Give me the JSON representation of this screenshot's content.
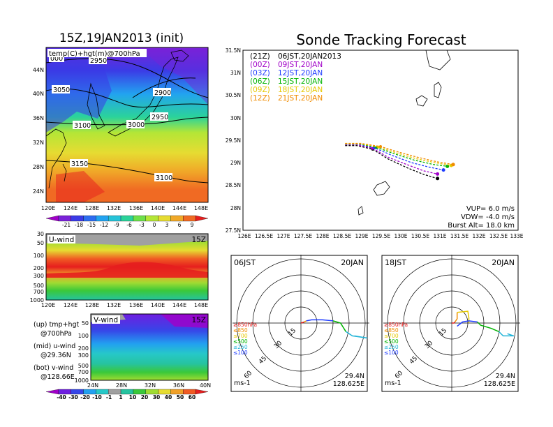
{
  "left_panel": {
    "title": "15Z,19JAN2013 (init)",
    "map_label": "temp(C)+hgt(m)@700hPa",
    "map_lat_ticks": [
      "44N",
      "40N",
      "36N",
      "32N",
      "28N",
      "24N"
    ],
    "map_lon_ticks": [
      "120E",
      "124E",
      "128E",
      "132E",
      "136E",
      "140E",
      "144E",
      "148E"
    ],
    "contour_labels": [
      "000",
      "2950",
      "3050",
      "2900",
      "3100",
      "2950",
      "3000",
      "3150",
      "3100"
    ],
    "temp_colorbar_labels": [
      "-21",
      "-18",
      "-15",
      "-12",
      "-9",
      "-6",
      "-3",
      "0",
      "3",
      "6",
      "9"
    ],
    "temp_colorbar_colors": [
      "#a000c8",
      "#7a22d8",
      "#3b3be6",
      "#2d6cf0",
      "#22a3f0",
      "#26c3d8",
      "#2bd39a",
      "#6ee04a",
      "#b4e636",
      "#e6dc32",
      "#f0a828",
      "#f06a23",
      "#e61e1e"
    ],
    "uwind": {
      "label": "U-wind",
      "time": "15Z",
      "levels": [
        "30",
        "50",
        "100",
        "200",
        "300",
        "500",
        "700",
        "1000"
      ],
      "lon_ticks": [
        "120E",
        "124E",
        "128E",
        "132E",
        "136E",
        "140E",
        "144E",
        "148E"
      ]
    },
    "vwind": {
      "label": "V-wind",
      "time": "15Z",
      "levels": [
        "50",
        "100",
        "200",
        "300",
        "500",
        "700",
        "1000"
      ],
      "lat_ticks": [
        "24N",
        "28N",
        "32N",
        "36N",
        "40N"
      ]
    },
    "legend_notes": [
      "(up) tmp+hgt",
      "@700hPa",
      "(mid) u-wind",
      "@29.36N",
      "(bot) v-wind",
      "@128.66E"
    ],
    "wind_colorbar_labels": [
      "-40",
      "-30",
      "-20",
      "-10",
      "-1",
      "1",
      "10",
      "20",
      "30",
      "40",
      "50",
      "60"
    ],
    "wind_colorbar_colors": [
      "#a000c8",
      "#6e1ee0",
      "#3746e8",
      "#22a0f0",
      "#26c8c8",
      "#a0a0a0",
      "#26c3a0",
      "#3ac83a",
      "#a0dc32",
      "#e6dc32",
      "#f0a028",
      "#f05a23",
      "#e61e1e"
    ]
  },
  "right_panel": {
    "title": "Sonde Tracking Forecast",
    "legend": [
      {
        "code": "(21Z)",
        "time": "06JST,20JAN2013",
        "color": "#000000"
      },
      {
        "code": "(00Z)",
        "time": "09JST,20JAN",
        "color": "#a000c8"
      },
      {
        "code": "(03Z)",
        "time": "12JST,20JAN",
        "color": "#1e3cff"
      },
      {
        "code": "(06Z)",
        "time": "15JST,20JAN",
        "color": "#00b400"
      },
      {
        "code": "(09Z)",
        "time": "18JST,20JAN",
        "color": "#e6c800"
      },
      {
        "code": "(12Z)",
        "time": "21JST,20JAN",
        "color": "#f08c00"
      }
    ],
    "params": [
      "VUP= 6.0 m/s",
      "VDW= -4.0 m/s",
      "Burst Alt= 18.0 km"
    ],
    "lat_ticks": [
      "31.5N",
      "31N",
      "30.5N",
      "30N",
      "29.5N",
      "29N",
      "28.5N",
      "28N",
      "27.5N"
    ],
    "lon_ticks": [
      "126E",
      "126.5E",
      "127E",
      "127.5E",
      "128E",
      "128.5E",
      "129E",
      "129.5E",
      "130E",
      "130.5E",
      "131E",
      "131.5E",
      "132E",
      "132.5E",
      "133E"
    ]
  },
  "hodographs": [
    {
      "time": "06JST",
      "date": "20JAN",
      "ring_labels": [
        "15",
        "30",
        "45",
        "60"
      ],
      "levels": [
        "≥850hPa",
        "≤850",
        "≤700",
        "≤500",
        "≤250",
        "≤100"
      ],
      "level_colors": [
        "#e61e1e",
        "#f08c00",
        "#e6c800",
        "#00b400",
        "#22b4d8",
        "#1e3cff"
      ],
      "unit": "ms-1",
      "lat": "29.4N",
      "lon": "128.625E"
    },
    {
      "time": "18JST",
      "date": "20JAN",
      "ring_labels": [
        "15",
        "30",
        "45",
        "60"
      ],
      "levels": [
        "≥850hPa",
        "≤850",
        "≤700",
        "≤500",
        "≤250",
        "≤100"
      ],
      "level_colors": [
        "#e61e1e",
        "#f08c00",
        "#e6c800",
        "#00b400",
        "#22b4d8",
        "#1e3cff"
      ],
      "unit": "ms-1",
      "lat": "29.4N",
      "lon": "128.625E"
    }
  ],
  "chart_data": [
    {
      "type": "line",
      "title": "Sonde Tracking Forecast",
      "xlabel": "",
      "ylabel": "",
      "xlim": [
        126,
        133
      ],
      "ylim": [
        27.5,
        31.5
      ],
      "series": [
        {
          "name": "(21Z) 06JST,20JAN2013",
          "x": [
            128.6,
            128.9,
            129.3,
            129.7,
            130.2,
            130.6,
            130.95
          ],
          "y": [
            29.38,
            29.38,
            29.3,
            29.08,
            28.88,
            28.74,
            28.65
          ]
        },
        {
          "name": "(00Z) 09JST,20JAN",
          "x": [
            128.6,
            128.9,
            129.3,
            129.7,
            130.2,
            130.6,
            130.95
          ],
          "y": [
            29.4,
            29.4,
            29.32,
            29.12,
            28.95,
            28.82,
            28.75
          ]
        },
        {
          "name": "(03Z) 12JST,20JAN",
          "x": [
            128.6,
            128.95,
            129.35,
            129.8,
            130.3,
            130.75,
            131.1
          ],
          "y": [
            29.41,
            29.41,
            29.33,
            29.16,
            29.0,
            28.9,
            28.84
          ]
        },
        {
          "name": "(06Z) 15JST,20JAN",
          "x": [
            128.6,
            128.95,
            129.4,
            129.85,
            130.35,
            130.85,
            131.2
          ],
          "y": [
            29.42,
            29.42,
            29.34,
            29.2,
            29.06,
            28.96,
            28.92
          ]
        },
        {
          "name": "(09Z) 18JST,20JAN",
          "x": [
            128.6,
            129.0,
            129.45,
            129.9,
            130.4,
            130.9,
            131.3
          ],
          "y": [
            29.42,
            29.42,
            29.35,
            29.22,
            29.09,
            29.0,
            28.94
          ]
        },
        {
          "name": "(12Z) 21JST,20JAN",
          "x": [
            128.6,
            129.0,
            129.5,
            129.95,
            130.45,
            130.95,
            131.35
          ],
          "y": [
            29.43,
            29.43,
            29.36,
            29.24,
            29.12,
            29.02,
            28.96
          ]
        }
      ]
    },
    {
      "type": "line",
      "title": "06JST 20JAN",
      "xlabel": "",
      "ylabel": "",
      "xlim": [
        -60,
        60
      ],
      "ylim": [
        -60,
        60
      ],
      "series": [
        {
          "name": "≥850hPa",
          "x": [
            0,
            3
          ],
          "y": [
            0,
            1
          ]
        },
        {
          "name": "≤850",
          "x": [
            3,
            5
          ],
          "y": [
            1,
            2
          ]
        },
        {
          "name": "≤100",
          "x": [
            5,
            10,
            20,
            30
          ],
          "y": [
            2,
            3,
            3,
            2
          ]
        },
        {
          "name": "≤500",
          "x": [
            30,
            37,
            42
          ],
          "y": [
            2,
            0,
            -8
          ]
        },
        {
          "name": "≤250",
          "x": [
            42,
            48,
            62,
            50
          ],
          "y": [
            -8,
            -12,
            -14,
            -12
          ]
        }
      ]
    },
    {
      "type": "line",
      "title": "18JST 20JAN",
      "xlabel": "",
      "ylabel": "",
      "xlim": [
        -60,
        60
      ],
      "ylim": [
        -60,
        60
      ],
      "series": [
        {
          "name": "≥850hPa",
          "x": [
            0,
            2,
            3
          ],
          "y": [
            0,
            0,
            1
          ]
        },
        {
          "name": "≤850",
          "x": [
            3,
            5,
            5
          ],
          "y": [
            1,
            4,
            10
          ]
        },
        {
          "name": "≤700",
          "x": [
            5,
            15,
            16,
            16
          ],
          "y": [
            10,
            11,
            5,
            0
          ]
        },
        {
          "name": "≤100",
          "x": [
            5,
            10,
            16,
            24
          ],
          "y": [
            -3,
            1,
            2,
            1
          ]
        },
        {
          "name": "≤500",
          "x": [
            24,
            27,
            37,
            44
          ],
          "y": [
            1,
            -2,
            -5,
            -8
          ]
        },
        {
          "name": "≤250",
          "x": [
            44,
            48,
            58,
            52
          ],
          "y": [
            -8,
            -12,
            -12,
            -10
          ]
        }
      ]
    }
  ]
}
